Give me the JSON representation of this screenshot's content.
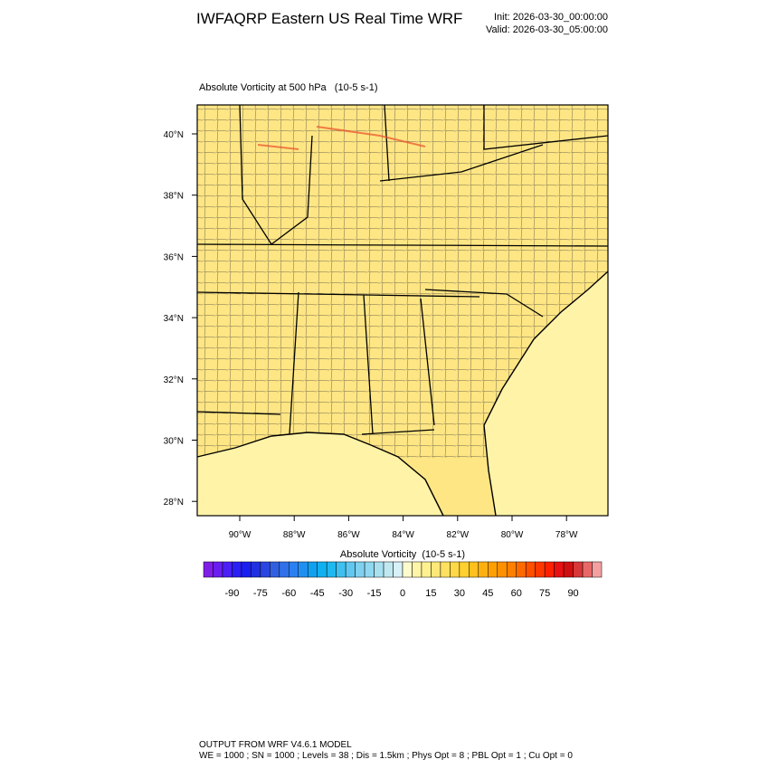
{
  "header": {
    "title": "IWFAQRP Eastern US Real Time WRF",
    "init": "Init: 2026-03-30_00:00:00",
    "valid": "Valid: 2026-03-30_05:00:00"
  },
  "map": {
    "subtitle": "Absolute Vorticity at 500 hPa   (10-5 s-1)",
    "lat_labels": [
      "40°N",
      "38°N",
      "36°N",
      "34°N",
      "32°N",
      "30°N",
      "28°N"
    ],
    "lon_labels": [
      "90°W",
      "88°W",
      "86°W",
      "84°W",
      "82°W",
      "80°W",
      "78°W"
    ]
  },
  "colorbar": {
    "title": "Absolute Vorticity  (10-5 s-1)",
    "labels": [
      -90,
      -75,
      -60,
      -45,
      -30,
      -15,
      0,
      15,
      30,
      45,
      60,
      75,
      90
    ],
    "colors": [
      "#7f1fe6",
      "#6a1ff0",
      "#4b1ff5",
      "#2a1ff5",
      "#1a1ff0",
      "#2030e0",
      "#2a45e0",
      "#3060e0",
      "#3070e8",
      "#2a80f0",
      "#2090f0",
      "#10a0f0",
      "#10b0f0",
      "#20b8f0",
      "#40c0f0",
      "#60c8f0",
      "#80d0f0",
      "#90d8f0",
      "#a8e0f0",
      "#c0e8f0",
      "#d8f0f8",
      "#fffacc",
      "#fff5a8",
      "#fff090",
      "#ffe878",
      "#ffe060",
      "#ffd848",
      "#ffd030",
      "#ffc020",
      "#ffb010",
      "#ffa000",
      "#ff9000",
      "#ff8000",
      "#ff6a00",
      "#ff5000",
      "#ff3800",
      "#ff2000",
      "#e81010",
      "#d01010",
      "#d83838",
      "#e86868",
      "#f4a0a0"
    ]
  },
  "footer": {
    "line1": "OUTPUT FROM WRF V4.6.1 MODEL",
    "line2": "WE = 1000 ; SN = 1000 ; Levels = 38 ; Dis = 1.5km ; Phys Opt = 8 ; PBL Opt = 1 ; Cu Opt = 0"
  }
}
